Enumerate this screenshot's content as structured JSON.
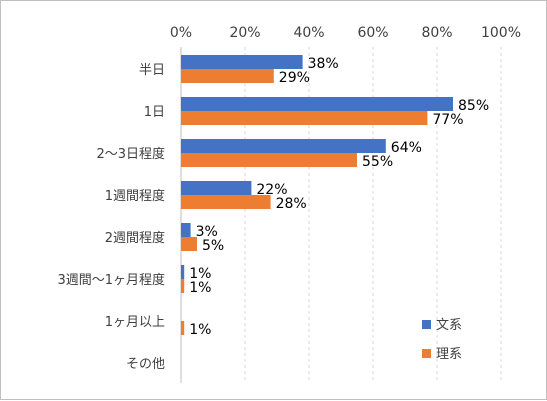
{
  "chart_data": {
    "type": "bar",
    "orientation": "horizontal",
    "categories": [
      "半日",
      "1日",
      "2〜3日程度",
      "1週間程度",
      "2週間程度",
      "3週間〜1ヶ月程度",
      "1ヶ月以上",
      "その他"
    ],
    "series": [
      {
        "name": "文系",
        "color": "#4472C4",
        "values": [
          38,
          85,
          64,
          22,
          3,
          1,
          0,
          0
        ],
        "labels": [
          "38%",
          "85%",
          "64%",
          "22%",
          "3%",
          "1%",
          "",
          ""
        ]
      },
      {
        "name": "理系",
        "color": "#ED7D31",
        "values": [
          29,
          77,
          55,
          28,
          5,
          1,
          1,
          0
        ],
        "labels": [
          "29%",
          "77%",
          "55%",
          "28%",
          "5%",
          "1%",
          "1%",
          ""
        ]
      }
    ],
    "xlim": [
      0,
      100
    ],
    "xticks": [
      0,
      20,
      40,
      60,
      80,
      100
    ],
    "xtick_labels": [
      "0%",
      "20%",
      "40%",
      "60%",
      "80%",
      "100%"
    ],
    "axis_position": "top",
    "grid": "vertical-dashed",
    "legend_position": "bottom-right",
    "title": "",
    "xlabel": "",
    "ylabel": ""
  }
}
